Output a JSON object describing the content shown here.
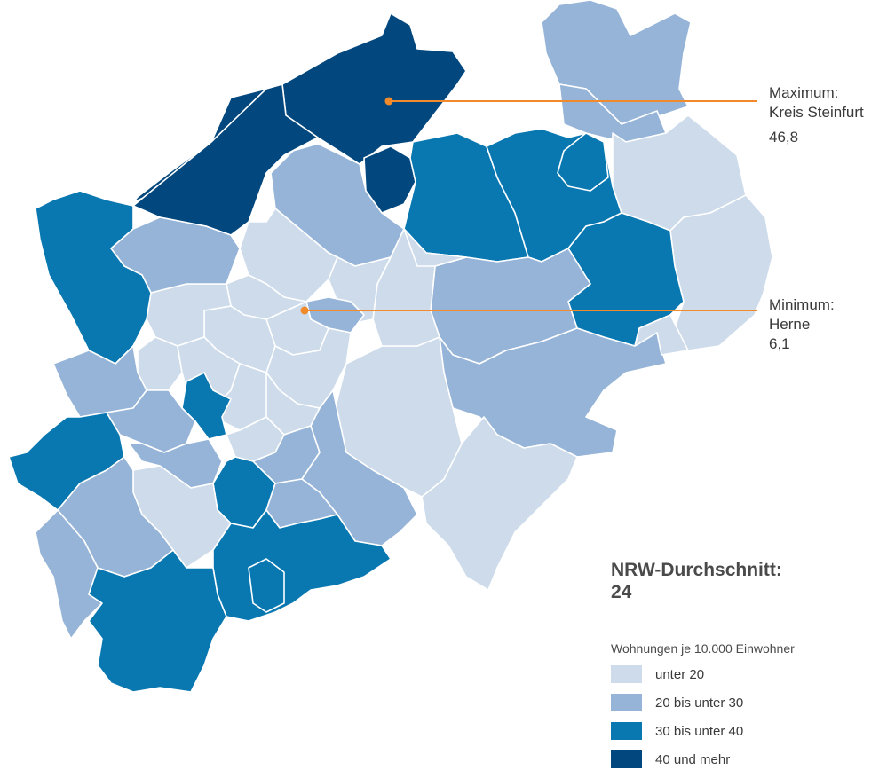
{
  "callouts": {
    "max_title": "Maximum:",
    "max_name": "Kreis Steinfurt",
    "max_value": "46,8",
    "min_title": "Minimum:",
    "min_name": "Herne",
    "min_value": "6,1"
  },
  "average": {
    "label": "NRW-Durchschnitt:",
    "value": "24"
  },
  "legend": {
    "title": "Wohnungen je 10.000 Einwohner",
    "items": [
      {
        "label": "unter 20",
        "color": "#cddbeb"
      },
      {
        "label": "20 bis unter 30",
        "color": "#95b4d7"
      },
      {
        "label": "30 bis unter 40",
        "color": "#0978b1"
      },
      {
        "label": "40 und mehr",
        "color": "#02477d"
      }
    ]
  },
  "colors": {
    "c1": "#cddbeb",
    "c2": "#95b4d7",
    "c3": "#0978b1",
    "c4": "#02477d",
    "leader": "#f08a2a",
    "border": "#ffffff"
  }
}
